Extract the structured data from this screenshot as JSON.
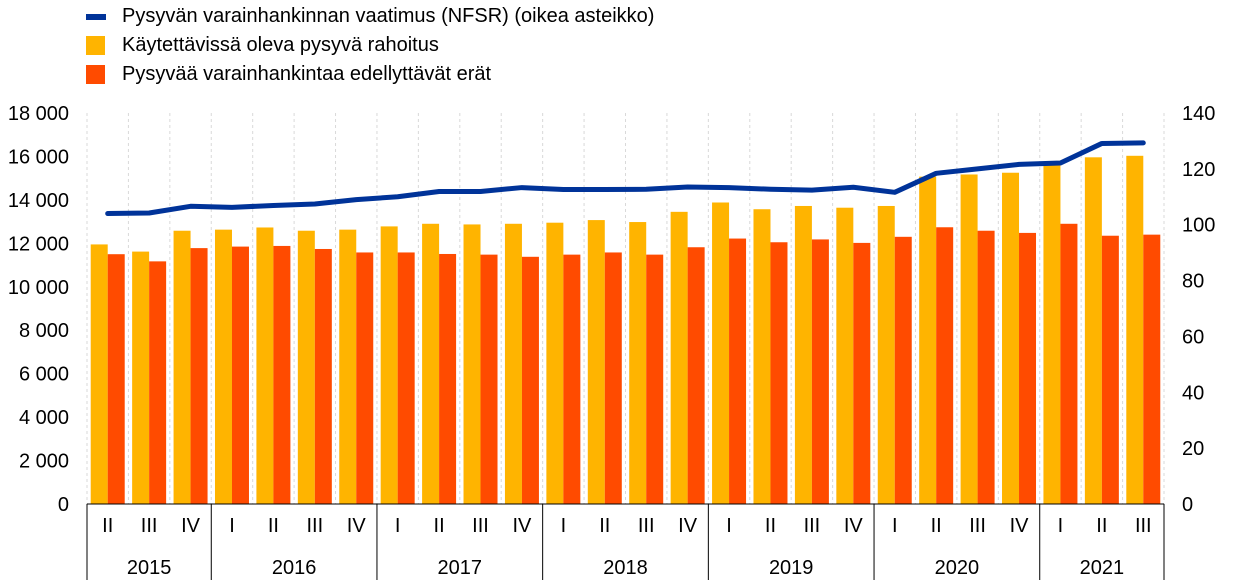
{
  "chart_data": {
    "type": "bar",
    "title": "",
    "legend_position": "top-left",
    "grid": "vertical",
    "y_left": {
      "ylim": [
        0,
        18000
      ],
      "ticks": [
        "0",
        "2 000",
        "4 000",
        "6 000",
        "8 000",
        "10 000",
        "12 000",
        "14 000",
        "16 000",
        "18 000"
      ]
    },
    "y_right": {
      "ylim": [
        0,
        140
      ],
      "ticks": [
        "0",
        "20",
        "40",
        "60",
        "80",
        "100",
        "120",
        "140"
      ]
    },
    "categories": [
      "II",
      "III",
      "IV",
      "I",
      "II",
      "III",
      "IV",
      "I",
      "II",
      "III",
      "IV",
      "I",
      "II",
      "III",
      "IV",
      "I",
      "II",
      "III",
      "IV",
      "I",
      "II",
      "III",
      "IV",
      "I",
      "II",
      "III"
    ],
    "years": [
      {
        "label": "2015",
        "count": 3
      },
      {
        "label": "2016",
        "count": 4
      },
      {
        "label": "2017",
        "count": 4
      },
      {
        "label": "2018",
        "count": 4
      },
      {
        "label": "2019",
        "count": 4
      },
      {
        "label": "2020",
        "count": 4
      },
      {
        "label": "2021",
        "count": 3
      }
    ],
    "series": [
      {
        "name": "Pysyvän varainhankinnan vaatimus (NFSR) (oikea asteikko)",
        "type": "line",
        "axis": "right",
        "color": "#003399",
        "values": [
          104,
          104.2,
          106.6,
          106.2,
          106.9,
          107.4,
          109,
          110,
          111.9,
          111.9,
          113.3,
          112.6,
          112.6,
          112.7,
          113.5,
          113.3,
          112.7,
          112.4,
          113.4,
          111.6,
          118.4,
          120,
          121.6,
          122.1,
          129.1,
          129.3
        ]
      },
      {
        "name": "Käytettävissä oleva pysyvä rahoitus",
        "type": "bar",
        "axis": "left",
        "color": "#FFB400",
        "values": [
          11950,
          11620,
          12580,
          12630,
          12730,
          12580,
          12630,
          12780,
          12900,
          12870,
          12900,
          12950,
          13070,
          12980,
          13450,
          13880,
          13570,
          13720,
          13640,
          13720,
          15070,
          15170,
          15250,
          15720,
          15960,
          16030
        ]
      },
      {
        "name": "Pysyvää varainhankintaa edellyttävät erät",
        "type": "bar",
        "axis": "left",
        "color": "#FF4B00",
        "values": [
          11500,
          11170,
          11780,
          11850,
          11880,
          11740,
          11580,
          11580,
          11510,
          11480,
          11380,
          11480,
          11580,
          11480,
          11820,
          12220,
          12050,
          12180,
          12020,
          12300,
          12740,
          12580,
          12480,
          12900,
          12350,
          12400
        ]
      }
    ]
  }
}
